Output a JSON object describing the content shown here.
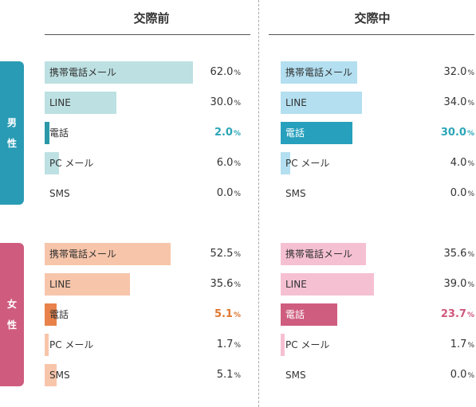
{
  "chart_data": [
    {
      "type": "bar",
      "title": "交際前",
      "groups": [
        {
          "label": "男性",
          "categories": [
            "携帯電話メール",
            "LINE",
            "電話",
            "PC メール",
            "SMS"
          ],
          "values": [
            62.0,
            30.0,
            2.0,
            6.0,
            0.0
          ],
          "display": [
            "62.0",
            "30.0",
            "2.0",
            "6.0",
            "0.0"
          ],
          "colors": {
            "bar": "#bde0e2",
            "highlight": "#2b98a8",
            "highlight_text": "#2ba6b8"
          }
        },
        {
          "label": "女性",
          "categories": [
            "携帯電話メール",
            "LINE",
            "電話",
            "PC メール",
            "SMS"
          ],
          "values": [
            52.5,
            35.6,
            5.1,
            1.7,
            5.1
          ],
          "display": [
            "52.5",
            "35.6",
            "5.1",
            "1.7",
            "5.1"
          ],
          "colors": {
            "bar": "#f7c5aa",
            "highlight": "#e8824a",
            "highlight_text": "#e0762e"
          }
        }
      ],
      "highlight_category": "電話",
      "unit": "%",
      "ylim": [
        0,
        100
      ]
    },
    {
      "type": "bar",
      "title": "交際中",
      "groups": [
        {
          "label": "男性",
          "categories": [
            "携帯電話メール",
            "LINE",
            "電話",
            "PC メール",
            "SMS"
          ],
          "values": [
            32.0,
            34.0,
            30.0,
            4.0,
            0.0
          ],
          "display": [
            "32.0",
            "34.0",
            "30.0",
            "4.0",
            "0.0"
          ],
          "colors": {
            "bar": "#b3dff0",
            "highlight": "#27a0bd",
            "highlight_text": "#2ba6b8"
          }
        },
        {
          "label": "女性",
          "categories": [
            "携帯電話メール",
            "LINE",
            "電話",
            "PC メール",
            "SMS"
          ],
          "values": [
            35.6,
            39.0,
            23.7,
            1.7,
            0.0
          ],
          "display": [
            "35.6",
            "39.0",
            "23.7",
            "1.7",
            "0.0"
          ],
          "colors": {
            "bar": "#f6c0d3",
            "highlight": "#cf5d80",
            "highlight_text": "#d0577c"
          }
        }
      ],
      "highlight_category": "電話",
      "unit": "%",
      "ylim": [
        0,
        100
      ]
    }
  ],
  "side_labels": [
    {
      "chars": [
        "男",
        "性"
      ],
      "color": "#2a9bb5"
    },
    {
      "chars": [
        "女",
        "性"
      ],
      "color": "#cf5c7e"
    }
  ]
}
